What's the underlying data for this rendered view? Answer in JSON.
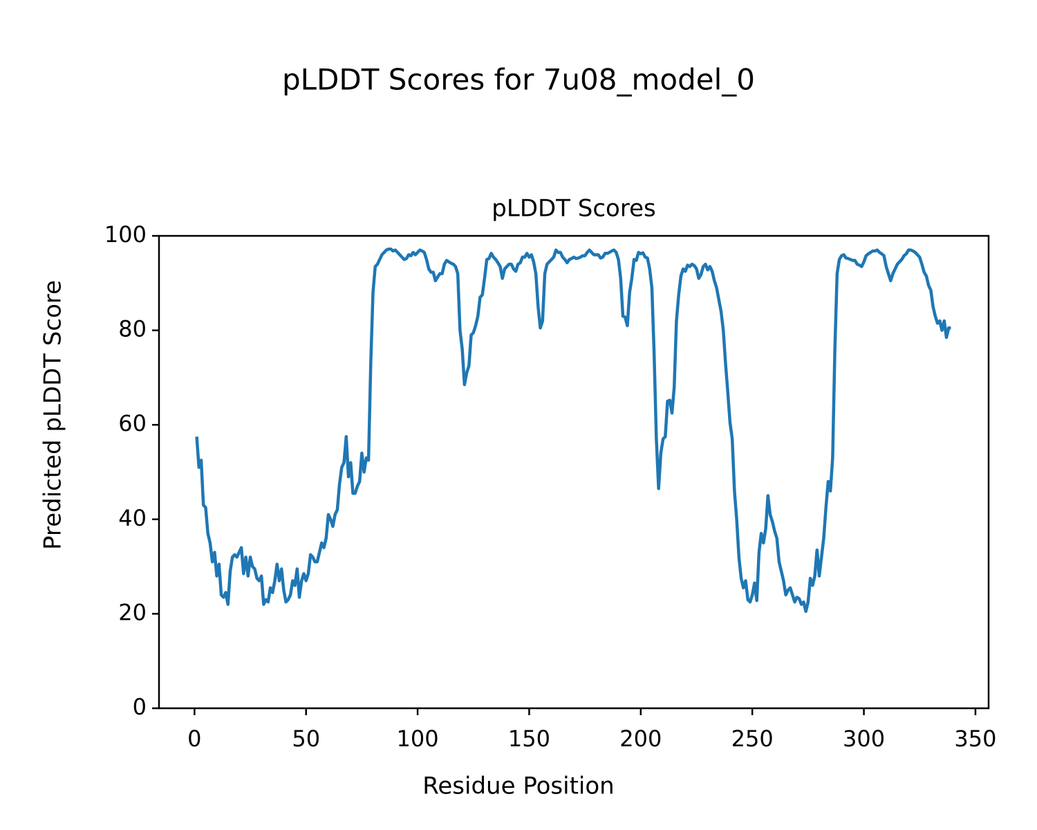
{
  "chart_data": {
    "type": "line",
    "suptitle": "pLDDT Scores for 7u08_model_0",
    "title": "pLDDT Scores",
    "xlabel": "Residue Position",
    "ylabel": "Predicted pLDDT Score",
    "xlim": [
      -15.9,
      355.9
    ],
    "ylim": [
      0,
      100
    ],
    "xticks": [
      0,
      50,
      100,
      150,
      200,
      250,
      300,
      350
    ],
    "yticks": [
      0,
      20,
      40,
      60,
      80,
      100
    ],
    "grid": false,
    "series": [
      {
        "name": "pLDDT",
        "color": "#1f77b4",
        "x": [
          1,
          2,
          3,
          4,
          5,
          6,
          7,
          8,
          9,
          10,
          11,
          12,
          13,
          14,
          15,
          16,
          17,
          18,
          19,
          20,
          21,
          22,
          23,
          24,
          25,
          26,
          27,
          28,
          29,
          30,
          31,
          32,
          33,
          34,
          35,
          36,
          37,
          38,
          39,
          40,
          41,
          42,
          43,
          44,
          45,
          46,
          47,
          48,
          49,
          50,
          51,
          52,
          53,
          54,
          55,
          56,
          57,
          58,
          59,
          60,
          61,
          62,
          63,
          64,
          65,
          66,
          67,
          68,
          69,
          70,
          71,
          72,
          73,
          74,
          75,
          76,
          77,
          78,
          79,
          80,
          81,
          82,
          83,
          84,
          85,
          86,
          87,
          88,
          89,
          90,
          91,
          92,
          93,
          94,
          95,
          96,
          97,
          98,
          99,
          100,
          101,
          102,
          103,
          104,
          105,
          106,
          107,
          108,
          109,
          110,
          111,
          112,
          113,
          114,
          115,
          116,
          117,
          118,
          119,
          120,
          121,
          122,
          123,
          124,
          125,
          126,
          127,
          128,
          129,
          130,
          131,
          132,
          133,
          134,
          135,
          136,
          137,
          138,
          139,
          140,
          141,
          142,
          143,
          144,
          145,
          146,
          147,
          148,
          149,
          150,
          151,
          152,
          153,
          154,
          155,
          156,
          157,
          158,
          159,
          160,
          161,
          162,
          163,
          164,
          165,
          166,
          167,
          168,
          169,
          170,
          171,
          172,
          173,
          174,
          175,
          176,
          177,
          178,
          179,
          180,
          181,
          182,
          183,
          184,
          185,
          186,
          187,
          188,
          189,
          190,
          191,
          192,
          193,
          194,
          195,
          196,
          197,
          198,
          199,
          200,
          201,
          202,
          203,
          204,
          205,
          206,
          207,
          208,
          209,
          210,
          211,
          212,
          213,
          214,
          215,
          216,
          217,
          218,
          219,
          220,
          221,
          222,
          223,
          224,
          225,
          226,
          227,
          228,
          229,
          230,
          231,
          232,
          233,
          234,
          235,
          236,
          237,
          238,
          239,
          240,
          241,
          242,
          243,
          244,
          245,
          246,
          247,
          248,
          249,
          250,
          251,
          252,
          253,
          254,
          255,
          256,
          257,
          258,
          259,
          260,
          261,
          262,
          263,
          264,
          265,
          266,
          267,
          268,
          269,
          270,
          271,
          272,
          273,
          274,
          275,
          276,
          277,
          278,
          279,
          280,
          281,
          282,
          283,
          284,
          285,
          286,
          287,
          288,
          289,
          290,
          291,
          292,
          293,
          294,
          295,
          296,
          297,
          298,
          299,
          300,
          301,
          302,
          303,
          304,
          305,
          306,
          307,
          308,
          309,
          310,
          311,
          312,
          313,
          314,
          315,
          316,
          317,
          318,
          319,
          320,
          321,
          322,
          323,
          324,
          325,
          326,
          327,
          328,
          329,
          330,
          331,
          332,
          333,
          334,
          335,
          336,
          337,
          338,
          339
        ],
        "values": [
          57.5,
          51,
          52.5,
          43,
          42.5,
          37,
          35,
          31,
          33,
          28,
          30.5,
          24,
          23.5,
          24.5,
          22,
          29,
          32,
          32.5,
          32,
          33,
          34,
          28.5,
          32,
          28,
          32,
          30,
          29.5,
          27.5,
          27,
          28,
          22,
          23,
          22.5,
          25.5,
          24.5,
          27,
          30.5,
          27,
          29.5,
          25,
          22.5,
          23,
          24,
          27,
          26,
          29.5,
          23.5,
          27,
          28.5,
          27,
          28.5,
          32.5,
          32,
          31,
          31,
          33,
          35,
          34,
          36,
          41,
          40,
          38.5,
          41,
          42,
          47.5,
          51,
          52,
          57.5,
          49,
          52,
          45.5,
          45.5,
          47,
          48,
          54,
          50,
          53,
          52.5,
          73,
          88,
          93.5,
          94,
          95,
          96,
          96.5,
          97,
          97.2,
          97.2,
          96.8,
          97,
          96.5,
          96,
          95.5,
          95,
          95.2,
          96,
          95.8,
          96.5,
          96,
          96.5,
          97,
          96.8,
          96.5,
          95,
          93,
          92.3,
          92.3,
          90.5,
          91.3,
          92,
          92,
          94,
          94.8,
          94.5,
          94.2,
          94,
          93.5,
          92,
          80,
          76,
          68.5,
          71,
          72.5,
          79,
          79.5,
          81,
          83,
          87,
          87.5,
          91,
          95,
          95.2,
          96.3,
          95.5,
          95,
          94.3,
          93.5,
          91,
          93,
          93.5,
          94,
          94,
          93,
          92.5,
          94,
          94.3,
          95.5,
          95.5,
          96.3,
          95.5,
          96,
          94.5,
          92,
          85,
          80.5,
          82,
          92,
          94,
          94.5,
          95,
          95.5,
          97,
          96.5,
          96.5,
          95.5,
          95,
          94.3,
          95,
          95.2,
          95.5,
          95.2,
          95.3,
          95.5,
          95.8,
          95.8,
          96.5,
          97,
          96.5,
          96,
          96,
          96,
          95.3,
          95.5,
          96.3,
          96.3,
          96.5,
          96.8,
          97,
          96.5,
          95,
          91,
          83,
          82.8,
          81,
          88,
          91,
          95,
          94.8,
          96.5,
          96.2,
          96.4,
          95.5,
          95.3,
          93,
          89,
          75,
          57,
          46.5,
          54,
          57,
          57.5,
          65,
          65.2,
          62.5,
          68,
          82,
          87.5,
          91.5,
          93,
          92.5,
          93.8,
          93.5,
          94,
          93.7,
          93,
          91,
          91.8,
          93.5,
          94,
          92.8,
          93.5,
          92.5,
          90.5,
          89,
          86.5,
          84,
          80,
          73,
          67,
          60.5,
          57,
          46,
          40,
          32,
          27.5,
          25.5,
          27,
          23,
          22.5,
          24,
          26.5,
          22.8,
          33,
          37,
          35,
          38,
          45,
          41,
          39.5,
          37.5,
          36,
          31,
          29,
          27,
          24,
          25,
          25.5,
          24,
          22.5,
          23.5,
          23.2,
          22,
          22.5,
          20.5,
          22.5,
          27.5,
          26,
          28,
          33.5,
          28,
          32,
          36,
          42.5,
          48,
          46,
          53,
          76,
          92,
          95,
          95.8,
          96,
          95.3,
          95.2,
          95,
          94.8,
          94.8,
          94,
          93.8,
          93.5,
          94.5,
          95.8,
          96.2,
          96.5,
          96.8,
          96.8,
          97,
          96.5,
          96.2,
          95.8,
          93.5,
          92,
          90.5,
          92,
          93,
          94,
          94.5,
          95,
          95.8,
          96.2,
          97,
          97,
          96.8,
          96.5,
          96,
          95.5,
          94,
          92.3,
          91.5,
          89.5,
          88.5,
          85,
          83,
          81.5,
          82,
          80,
          82,
          78.5,
          80.5,
          80.5
        ]
      }
    ]
  }
}
